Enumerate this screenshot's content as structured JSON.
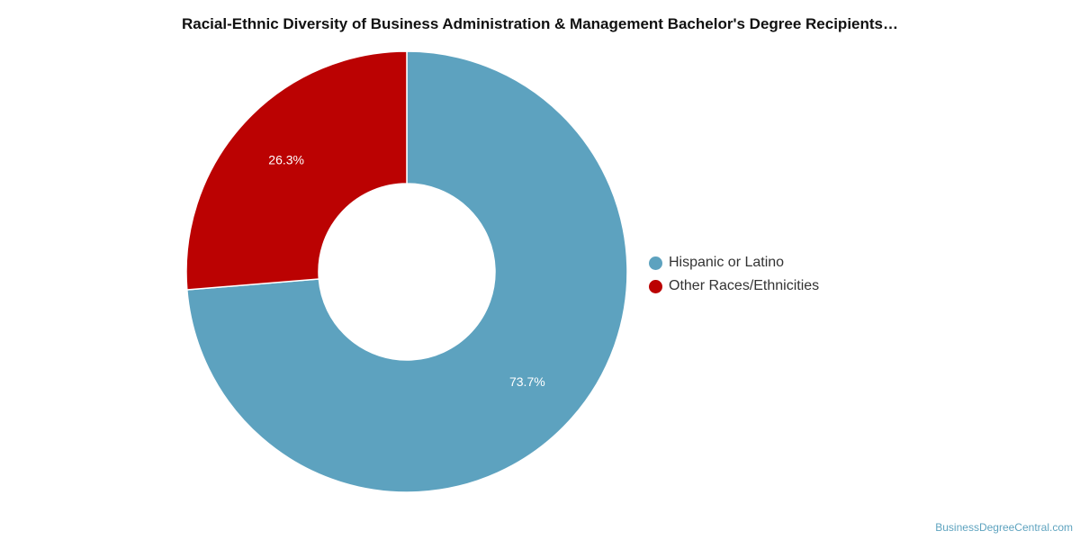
{
  "chart_data": {
    "type": "pie",
    "title": "Racial-Ethnic Diversity of Business Administration & Management Bachelor's Degree Recipients…",
    "donut": true,
    "start_angle_deg": 0,
    "slices": [
      {
        "label": "Hispanic or Latino",
        "value": 73.7,
        "display": "73.7%",
        "color": "#5da2bf"
      },
      {
        "label": "Other Races/Ethnicities",
        "value": 26.3,
        "display": "26.3%",
        "color": "#bb0202"
      }
    ],
    "legend_position": "right"
  },
  "watermark": "BusinessDegreeCentral.com"
}
